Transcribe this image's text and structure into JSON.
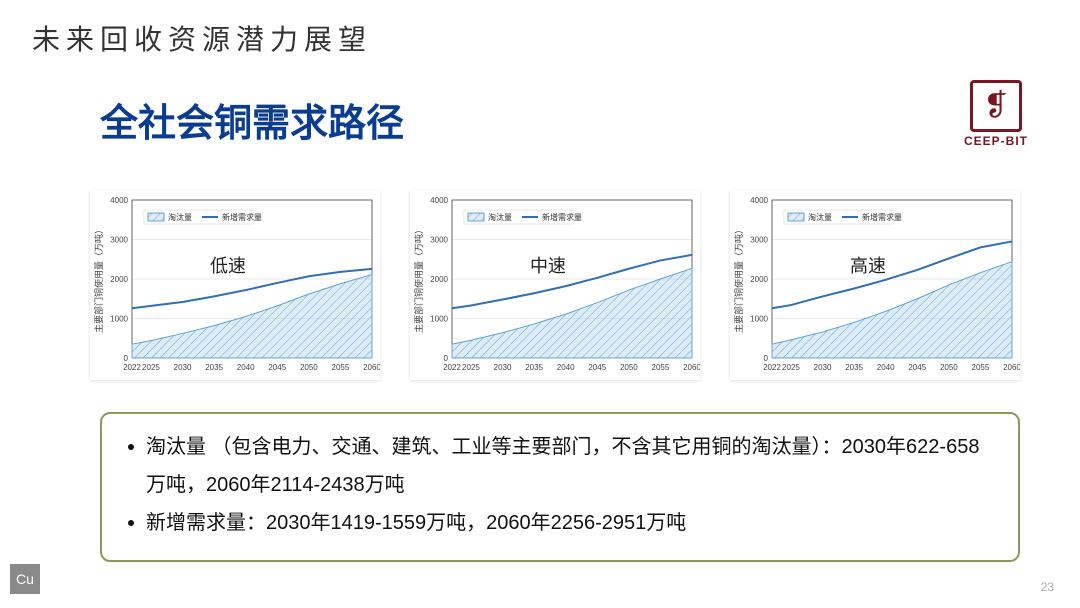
{
  "super_title": "未来回收资源潜力展望",
  "main_title": "全社会铜需求路径",
  "logo": {
    "text": "CEEP-BIT"
  },
  "page_number": "23",
  "element_badge": "Cu",
  "legend": {
    "series1": "淘汰量",
    "series2": "新增需求量",
    "series1_fill": "#9fc9e8",
    "series2_color": "#2e6fb5"
  },
  "chart_common": {
    "ylabel": "主要部门铜使用量（万吨）",
    "ylabel_fontsize": 9,
    "xtick_fontsize": 8,
    "ytick_fontsize": 8,
    "xlim": [
      2022,
      2060
    ],
    "xticks": [
      2022,
      2025,
      2030,
      2035,
      2040,
      2045,
      2050,
      2055,
      2060
    ],
    "ylim": [
      0,
      4000
    ],
    "yticks": [
      0,
      1000,
      2000,
      3000,
      4000
    ],
    "grid_color": "#e8e8e8",
    "axis_color": "#666666",
    "background": "#ffffff",
    "area_fill": "#9fc9e8",
    "area_stroke": "#5fa3d6",
    "line_color": "#2e6fb5",
    "line_width": 2,
    "hatch_angle_deg": 45
  },
  "charts": [
    {
      "label": "低速",
      "area_series": {
        "x": [
          2022,
          2025,
          2030,
          2035,
          2040,
          2045,
          2050,
          2055,
          2060
        ],
        "y": [
          350,
          440,
          622,
          820,
          1050,
          1320,
          1620,
          1880,
          2114
        ]
      },
      "line_series": {
        "x": [
          2022,
          2025,
          2030,
          2035,
          2040,
          2045,
          2050,
          2055,
          2060
        ],
        "y": [
          1260,
          1320,
          1419,
          1560,
          1720,
          1900,
          2070,
          2180,
          2256
        ]
      }
    },
    {
      "label": "中速",
      "area_series": {
        "x": [
          2022,
          2025,
          2030,
          2035,
          2040,
          2045,
          2050,
          2055,
          2060
        ],
        "y": [
          350,
          450,
          640,
          860,
          1110,
          1400,
          1720,
          2000,
          2270
        ]
      },
      "line_series": {
        "x": [
          2022,
          2025,
          2030,
          2035,
          2040,
          2045,
          2050,
          2055,
          2060
        ],
        "y": [
          1260,
          1330,
          1480,
          1640,
          1820,
          2030,
          2260,
          2470,
          2610
        ]
      }
    },
    {
      "label": "高速",
      "area_series": {
        "x": [
          2022,
          2025,
          2030,
          2035,
          2040,
          2045,
          2050,
          2055,
          2060
        ],
        "y": [
          350,
          460,
          658,
          900,
          1180,
          1500,
          1850,
          2160,
          2438
        ]
      },
      "line_series": {
        "x": [
          2022,
          2025,
          2030,
          2035,
          2040,
          2045,
          2050,
          2055,
          2060
        ],
        "y": [
          1260,
          1340,
          1559,
          1760,
          1980,
          2230,
          2520,
          2800,
          2951
        ]
      }
    }
  ],
  "caption": {
    "bullet1": "淘汰量 （包含电力、交通、建筑、工业等主要部门，不含其它用铜的淘汰量）：2030年622-658万吨，2060年2114-2438万吨",
    "bullet2": "新增需求量：2030年1419-1559万吨，2060年2256-2951万吨"
  }
}
